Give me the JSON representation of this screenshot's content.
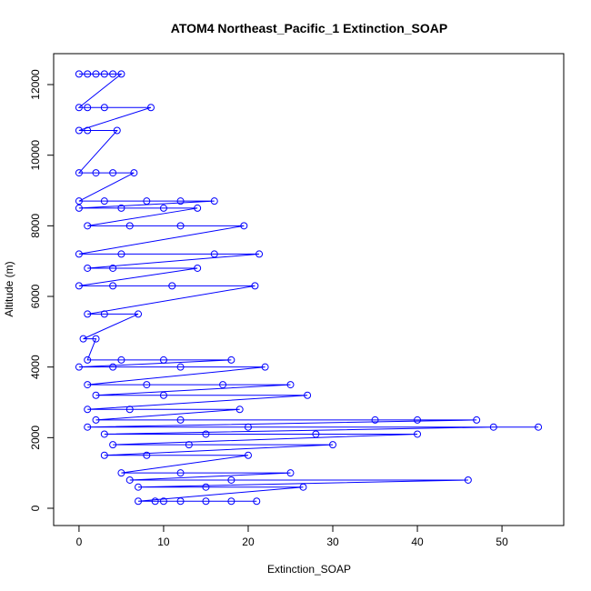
{
  "chart_data": {
    "type": "line",
    "title": "ATOM4 Northeast_Pacific_1 Extinction_SOAP",
    "xlabel": "Extinction_SOAP",
    "ylabel": "Altitude (m)",
    "color": "#0000ff",
    "x": [
      0,
      1,
      2,
      3,
      4,
      5,
      0,
      1,
      3,
      8.5,
      0,
      1,
      4.5,
      0,
      2,
      4,
      6.5,
      0,
      3,
      8,
      12,
      16,
      0,
      5,
      10,
      14,
      1,
      6,
      12,
      19.5,
      0,
      5,
      16,
      21.3,
      1,
      4,
      14,
      0,
      4,
      11,
      20.8,
      1,
      3,
      7,
      0.5,
      2,
      1,
      5,
      10,
      18,
      0,
      4,
      12,
      22,
      1,
      8,
      17,
      25,
      2,
      10,
      27,
      1,
      6,
      19,
      2,
      12,
      35,
      40,
      47,
      1,
      20,
      54.3,
      49,
      3,
      15,
      28,
      40,
      4,
      13,
      30,
      3,
      8,
      20,
      5,
      12,
      25,
      6,
      18,
      46,
      7,
      15,
      26.5,
      7,
      9,
      10,
      12,
      15,
      18,
      21
    ],
    "y": [
      12300,
      12300,
      12300,
      12300,
      12300,
      12300,
      11350,
      11350,
      11350,
      11350,
      10700,
      10700,
      10700,
      9500,
      9500,
      9500,
      9500,
      8700,
      8700,
      8700,
      8700,
      8700,
      8500,
      8500,
      8500,
      8500,
      8000,
      8000,
      8000,
      8000,
      7200,
      7200,
      7200,
      7200,
      6800,
      6800,
      6800,
      6300,
      6300,
      6300,
      6300,
      5500,
      5500,
      5500,
      4800,
      4800,
      4200,
      4200,
      4200,
      4200,
      4000,
      4000,
      4000,
      4000,
      3500,
      3500,
      3500,
      3500,
      3200,
      3200,
      3200,
      2800,
      2800,
      2800,
      2500,
      2500,
      2500,
      2500,
      2500,
      2300,
      2300,
      2300,
      2300,
      2100,
      2100,
      2100,
      2100,
      1800,
      1800,
      1800,
      1500,
      1500,
      1500,
      1000,
      1000,
      1000,
      800,
      800,
      800,
      600,
      600,
      600,
      200,
      200,
      200,
      200,
      200,
      200,
      200
    ],
    "xlim": [
      -3,
      57.3
    ],
    "ylim": [
      -489,
      12876
    ],
    "xticks": [
      0,
      10,
      20,
      30,
      40,
      50
    ],
    "yticks": [
      0,
      2000,
      4000,
      6000,
      8000,
      10000,
      12000
    ]
  }
}
